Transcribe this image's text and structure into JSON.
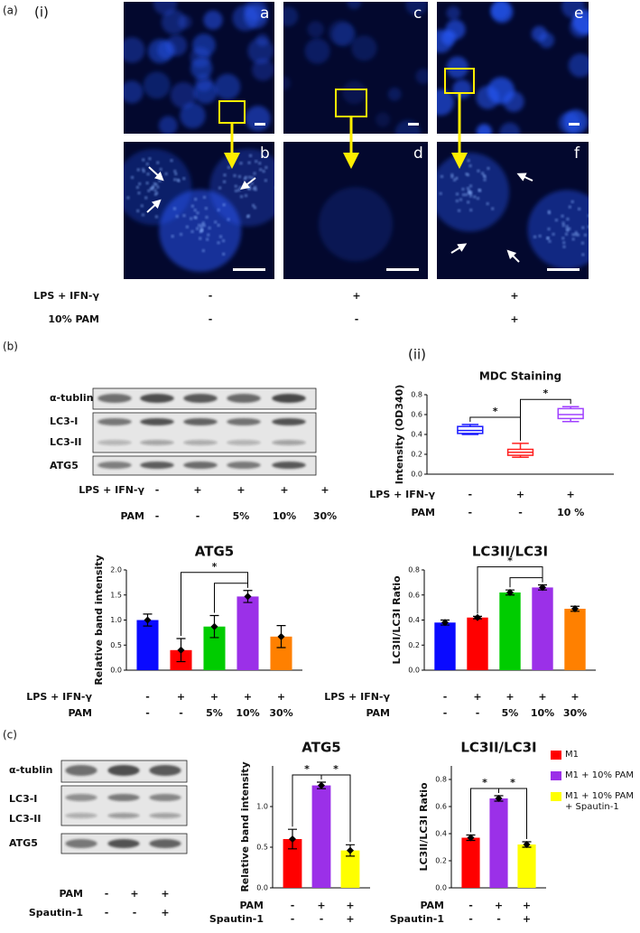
{
  "figure_labels": {
    "a": "(a)",
    "i": "(i)",
    "ii": "(ii)",
    "b": "(b)",
    "c": "(c)"
  },
  "micrographs": [
    "a",
    "c",
    "e",
    "b",
    "d",
    "f"
  ],
  "panel_a_treatments": [
    {
      "label": "LPS + IFN-γ",
      "signs": [
        "-",
        "+",
        "+"
      ]
    },
    {
      "label": "10% PAM",
      "signs": [
        "-",
        "-",
        "+"
      ]
    }
  ],
  "blot_b": {
    "bands": [
      "α-tublin",
      "LC3-I",
      "LC3-II",
      "ATG5"
    ],
    "treatments": [
      {
        "label": "LPS + IFN-γ",
        "signs": [
          "-",
          "+",
          "+",
          "+",
          "+"
        ]
      },
      {
        "label": "PAM",
        "signs": [
          "-",
          "-",
          "5%",
          "10%",
          "30%"
        ]
      }
    ]
  },
  "blot_c": {
    "bands": [
      "α-tublin",
      "LC3-I",
      "LC3-II",
      "ATG5"
    ],
    "treatments": [
      {
        "label": "PAM",
        "signs": [
          "-",
          "+",
          "+"
        ]
      },
      {
        "label": "Spautin-1",
        "signs": [
          "-",
          "-",
          "+"
        ]
      }
    ]
  },
  "legend_c": [
    {
      "name": "M1",
      "color": "#ff0000"
    },
    {
      "name": "M1 + 10% PAM",
      "color": "#9b30e8"
    },
    {
      "name": "M1 + 10% PAM + Spautin-1",
      "color": "#ffff00"
    }
  ],
  "chart_data": [
    {
      "type": "box",
      "title": "MDC Staining",
      "y_label": "Intensity (OD340)",
      "boxes": [
        {
          "min": 0.4,
          "q1": 0.41,
          "median": 0.44,
          "q3": 0.48,
          "max": 0.5
        },
        {
          "min": 0.17,
          "q1": 0.19,
          "median": 0.22,
          "q3": 0.25,
          "max": 0.31
        },
        {
          "min": 0.53,
          "q1": 0.56,
          "median": 0.6,
          "q3": 0.66,
          "max": 0.68
        }
      ],
      "colors": [
        "#1a1aff",
        "#ff2020",
        "#a040ff"
      ],
      "ylim": [
        0,
        0.8
      ],
      "yticks": [
        {
          "value": 0,
          "label": "0.0"
        },
        0.2,
        0.4,
        0.6,
        0.8
      ],
      "treatments": [
        {
          "label": "LPS + IFN-γ",
          "signs": [
            "-",
            "+",
            "+"
          ]
        },
        {
          "label": "PAM",
          "signs": [
            "-",
            "-",
            "10 %"
          ]
        }
      ],
      "brackets": [
        {
          "between": [
            0,
            1
          ],
          "label": "*"
        },
        {
          "between": [
            1,
            2
          ],
          "label": "*"
        }
      ]
    },
    {
      "type": "bar",
      "title": "ATG5",
      "y_label": "Relative band intensity",
      "values": [
        1.0,
        0.4,
        0.87,
        1.47,
        0.67
      ],
      "errors": [
        0.12,
        0.23,
        0.22,
        0.12,
        0.22
      ],
      "colors": [
        "#0a0aff",
        "#ff0000",
        "#00cc00",
        "#9b30e8",
        "#ff8000"
      ],
      "ylim": [
        0,
        2
      ],
      "yticks": [
        {
          "value": 0,
          "label": "0.0"
        },
        0.5,
        {
          "value": 1,
          "label": "1.0"
        },
        1.5,
        {
          "value": 2,
          "label": "2.0"
        }
      ],
      "treatments": [
        {
          "label": "LPS + IFN-γ",
          "signs": [
            "-",
            "+",
            "+",
            "+",
            "+"
          ]
        },
        {
          "label": "PAM",
          "signs": [
            "-",
            "-",
            "5%",
            "10%",
            "30%"
          ]
        }
      ],
      "brackets": [
        {
          "between": [
            1,
            3
          ],
          "label": "*"
        },
        {
          "between": [
            2,
            3
          ]
        }
      ]
    },
    {
      "type": "bar",
      "title": "LC3II/LC3I",
      "y_label": "LC3II/LC3I Ratio",
      "values": [
        0.38,
        0.42,
        0.62,
        0.66,
        0.49
      ],
      "errors": [
        0.02,
        0.01,
        0.02,
        0.02,
        0.02
      ],
      "colors": [
        "#0a0aff",
        "#ff0000",
        "#00cc00",
        "#9b30e8",
        "#ff8000"
      ],
      "ylim": [
        0,
        0.8
      ],
      "yticks": [
        {
          "value": 0,
          "label": "0.0"
        },
        0.2,
        0.4,
        0.6,
        0.8
      ],
      "treatments": [
        {
          "label": "LPS + IFN-γ",
          "signs": [
            "-",
            "+",
            "+",
            "+",
            "+"
          ]
        },
        {
          "label": "PAM",
          "signs": [
            "-",
            "-",
            "5%",
            "10%",
            "30%"
          ]
        }
      ],
      "brackets": [
        {
          "between": [
            1,
            3
          ],
          "label": "*"
        },
        {
          "between": [
            2,
            3
          ]
        }
      ]
    },
    {
      "type": "bar",
      "title": "ATG5",
      "y_label": "Relative band intensity",
      "values": [
        0.6,
        1.26,
        0.46
      ],
      "errors": [
        0.12,
        0.04,
        0.07
      ],
      "colors": [
        "#ff0000",
        "#9b30e8",
        "#ffff00"
      ],
      "ylim": [
        0,
        1.5
      ],
      "yticks": [
        {
          "value": 0,
          "label": "0.0"
        },
        0.5,
        {
          "value": 1,
          "label": "1.0"
        }
      ],
      "treatments": [
        {
          "label": "PAM",
          "signs": [
            "-",
            "+",
            "+"
          ]
        },
        {
          "label": "Spautin-1",
          "signs": [
            "-",
            "-",
            "+"
          ]
        }
      ],
      "brackets": [
        {
          "between": [
            0,
            1
          ],
          "label": "*"
        },
        {
          "between": [
            1,
            2
          ],
          "label": "*"
        }
      ]
    },
    {
      "type": "bar",
      "title": "LC3II/LC3I",
      "y_label": "LC3II/LC3I Ratio",
      "values": [
        0.37,
        0.66,
        0.32
      ],
      "errors": [
        0.02,
        0.02,
        0.02
      ],
      "colors": [
        "#ff0000",
        "#9b30e8",
        "#ffff00"
      ],
      "ylim": [
        0,
        0.9
      ],
      "yticks": [
        {
          "value": 0,
          "label": "0.0"
        },
        0.2,
        0.4,
        0.6,
        0.8
      ],
      "treatments": [
        {
          "label": "PAM",
          "signs": [
            "-",
            "+",
            "+"
          ]
        },
        {
          "label": "Spautin-1",
          "signs": [
            "-",
            "-",
            "+"
          ]
        }
      ],
      "brackets": [
        {
          "between": [
            0,
            1
          ],
          "label": "*"
        },
        {
          "between": [
            1,
            2
          ],
          "label": "*"
        }
      ]
    }
  ]
}
